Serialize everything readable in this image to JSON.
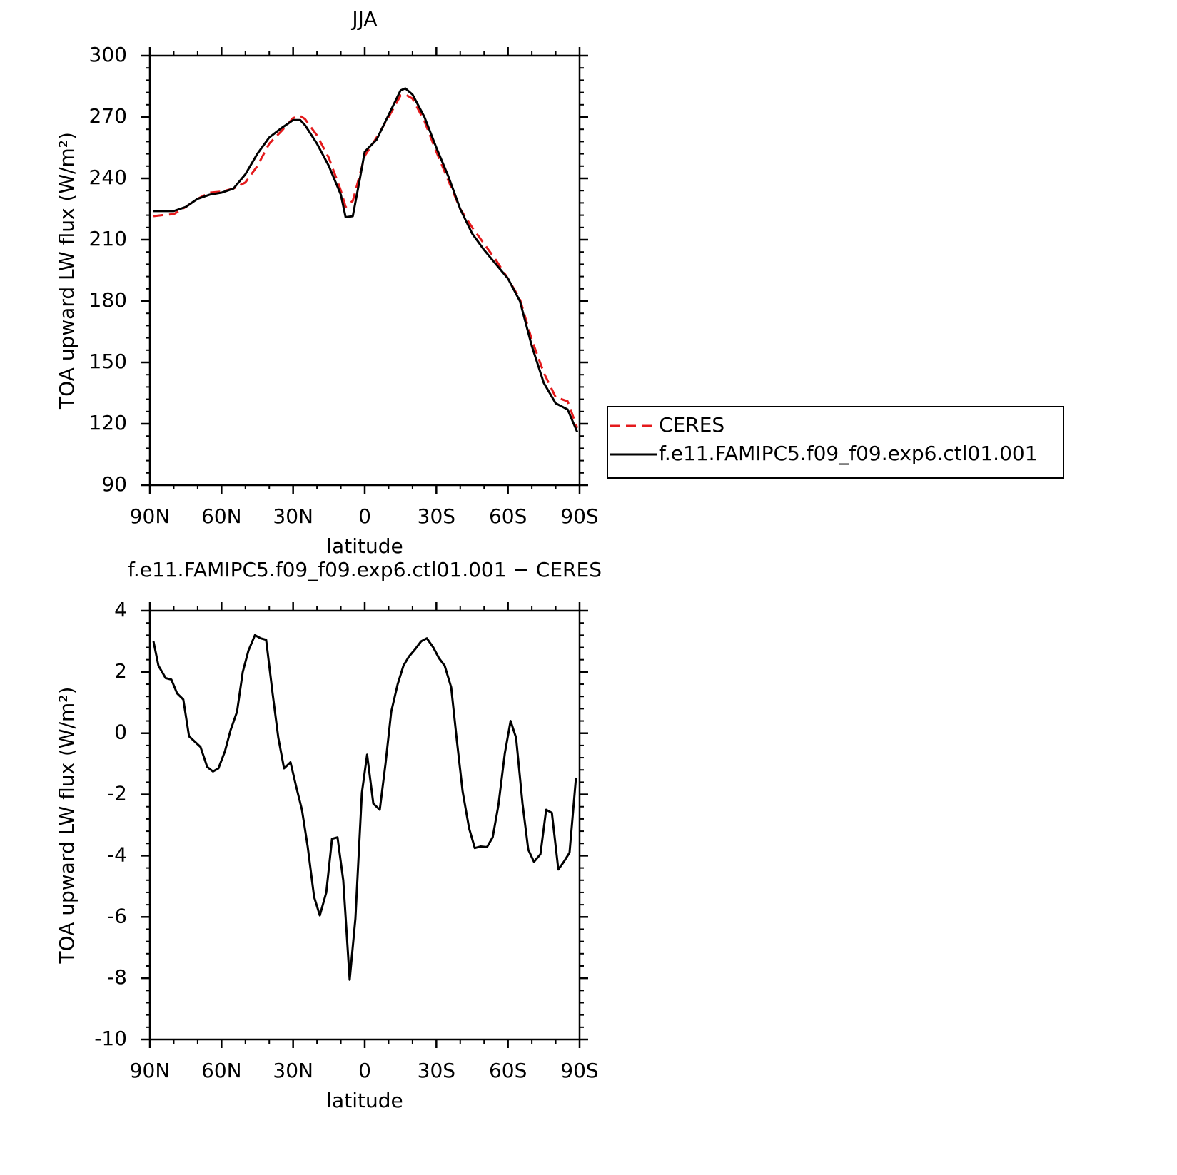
{
  "chart_data": [
    {
      "type": "line",
      "title": "JJA",
      "xlabel": "latitude",
      "ylabel": "TOA upward LW flux (W/m²)",
      "x": [
        88.5,
        85,
        80,
        75,
        70,
        65,
        60,
        55,
        50,
        45,
        40,
        35,
        30,
        27,
        25,
        20,
        15,
        10,
        8,
        5,
        2,
        0,
        -5,
        -10,
        -15,
        -17,
        -20,
        -25,
        -30,
        -35,
        -40,
        -45,
        -50,
        -55,
        -60,
        -65,
        -70,
        -75,
        -80,
        -85,
        -89
      ],
      "series": [
        {
          "name": "CERES",
          "color": "#e41a1c",
          "dash": true,
          "values": [
            221.5,
            222,
            222.5,
            226,
            230,
            233,
            233.5,
            235,
            238,
            246,
            257,
            263,
            269.5,
            270.5,
            269,
            261,
            250,
            234,
            226,
            229,
            242,
            251,
            260,
            270,
            280.5,
            281,
            279,
            268,
            253,
            239,
            225,
            216,
            208,
            200,
            191,
            181,
            161,
            145,
            133,
            131,
            118
          ]
        },
        {
          "name": "f.e11.FAMIPC5.f09_f09.exp6.ctl01.001",
          "color": "#000000",
          "dash": false,
          "values": [
            224,
            224,
            224,
            226,
            230,
            232,
            233,
            235,
            242,
            252,
            260,
            264.5,
            268.5,
            268.5,
            266,
            257,
            246,
            232,
            221,
            221.5,
            240,
            253,
            259,
            271,
            283,
            284,
            281,
            270,
            255,
            241,
            225,
            213,
            205,
            198,
            191,
            180,
            158,
            140,
            130,
            127,
            116
          ]
        }
      ],
      "xlim": [
        90,
        -90
      ],
      "xticks": [
        {
          "value": 90,
          "label": "90N"
        },
        {
          "value": 60,
          "label": "60N"
        },
        {
          "value": 30,
          "label": "30N"
        },
        0,
        {
          "value": -30,
          "label": "30S"
        },
        {
          "value": -60,
          "label": "60S"
        },
        {
          "value": -90,
          "label": "90S"
        }
      ],
      "ylim": [
        90,
        300
      ],
      "yticks": [
        90,
        120,
        150,
        180,
        210,
        240,
        270,
        300
      ],
      "legend": "right"
    },
    {
      "type": "line",
      "title": "f.e11.FAMIPC5.f09_f09.exp6.ctl01.001 − CERES",
      "xlabel": "latitude",
      "ylabel": "TOA upward LW flux (W/m²)",
      "x": [
        88.5,
        86.4,
        83.4,
        81,
        78.6,
        76,
        73.6,
        68.8,
        66,
        63.6,
        61.3,
        58.6,
        56.2,
        53.5,
        51.1,
        48.7,
        46,
        43.6,
        41.3,
        38.6,
        36.2,
        33.8,
        31.1,
        28.7,
        26.3,
        23.9,
        21.2,
        18.8,
        16.1,
        13.7,
        11.4,
        9,
        6.3,
        3.9,
        1.2,
        -1,
        -3.6,
        -6.3,
        -8.7,
        -11.1,
        -13.8,
        -16.2,
        -18.5,
        -21.2,
        -23.6,
        -26,
        -28.7,
        -31.1,
        -33.5,
        -36.2,
        -38.6,
        -41,
        -43.7,
        -46.1,
        -48.5,
        -51.2,
        -53.6,
        -56,
        -58.7,
        -61.1,
        -63.4,
        -66.1,
        -68.5,
        -70.9,
        -73.6,
        -76,
        -78.4,
        -81.1,
        -83.4,
        -85.8,
        -88.5
      ],
      "series": [
        {
          "name": "f.e11.FAMIPC5.f09_f09.exp6.ctl01.001 − CERES",
          "color": "#000000",
          "dash": false,
          "values": [
            3.0,
            2.2,
            1.8,
            1.75,
            1.3,
            1.1,
            -0.1,
            -0.45,
            -1.1,
            -1.25,
            -1.15,
            -0.6,
            0.1,
            0.7,
            2.0,
            2.7,
            3.2,
            3.1,
            3.05,
            1.3,
            -0.15,
            -1.15,
            -0.95,
            -1.75,
            -2.5,
            -3.7,
            -5.35,
            -5.95,
            -5.2,
            -3.45,
            -3.4,
            -4.8,
            -8.05,
            -6.05,
            -1.95,
            -0.7,
            -2.3,
            -2.5,
            -1.0,
            0.7,
            1.6,
            2.2,
            2.5,
            2.75,
            3.0,
            3.1,
            2.8,
            2.45,
            2.2,
            1.5,
            -0.25,
            -1.9,
            -3.1,
            -3.75,
            -3.7,
            -3.72,
            -3.4,
            -2.35,
            -0.65,
            0.4,
            -0.15,
            -2.3,
            -3.8,
            -4.2,
            -3.95,
            -2.5,
            -2.6,
            -4.45,
            -4.2,
            -3.9,
            -1.45
          ]
        }
      ],
      "xlim": [
        90,
        -90
      ],
      "xticks": [
        {
          "value": 90,
          "label": "90N"
        },
        {
          "value": 60,
          "label": "60N"
        },
        {
          "value": 30,
          "label": "30N"
        },
        0,
        {
          "value": -30,
          "label": "30S"
        },
        {
          "value": -60,
          "label": "60S"
        },
        {
          "value": -90,
          "label": "90S"
        }
      ],
      "ylim": [
        -10,
        4
      ],
      "yticks": [
        -10,
        -8,
        -6,
        -4,
        -2,
        0,
        2,
        4
      ]
    }
  ]
}
